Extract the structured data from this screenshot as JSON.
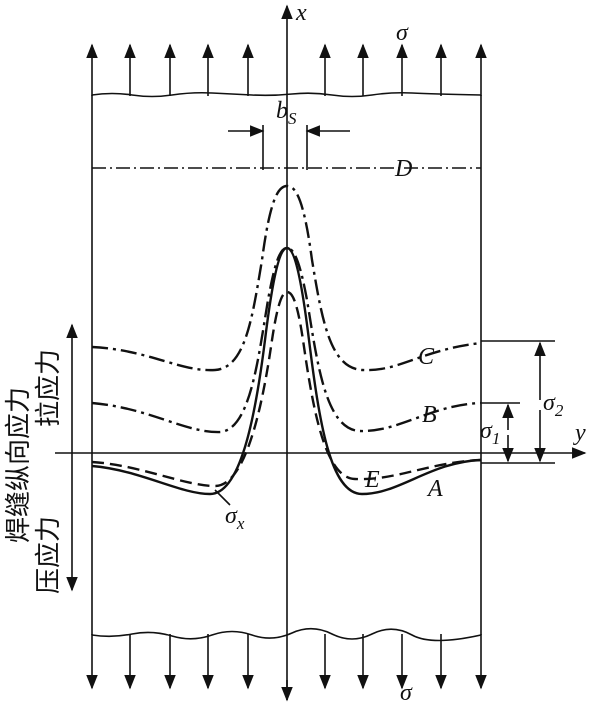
{
  "axes": {
    "x": "x",
    "y": "y"
  },
  "load_top": "σ",
  "load_bottom": "σ",
  "weld_width": {
    "text": "b",
    "sub": "S"
  },
  "curves": {
    "D": "D",
    "C": "C",
    "B": "B",
    "E": "E",
    "A": "A"
  },
  "sigma_x": {
    "text": "σ",
    "sub": "x"
  },
  "sigma_1": {
    "text": "σ",
    "sub": "1"
  },
  "sigma_2": {
    "text": "σ",
    "sub": "2"
  },
  "side_label": "焊缝纵向应力",
  "tension": "拉应力",
  "compression": "压应力"
}
